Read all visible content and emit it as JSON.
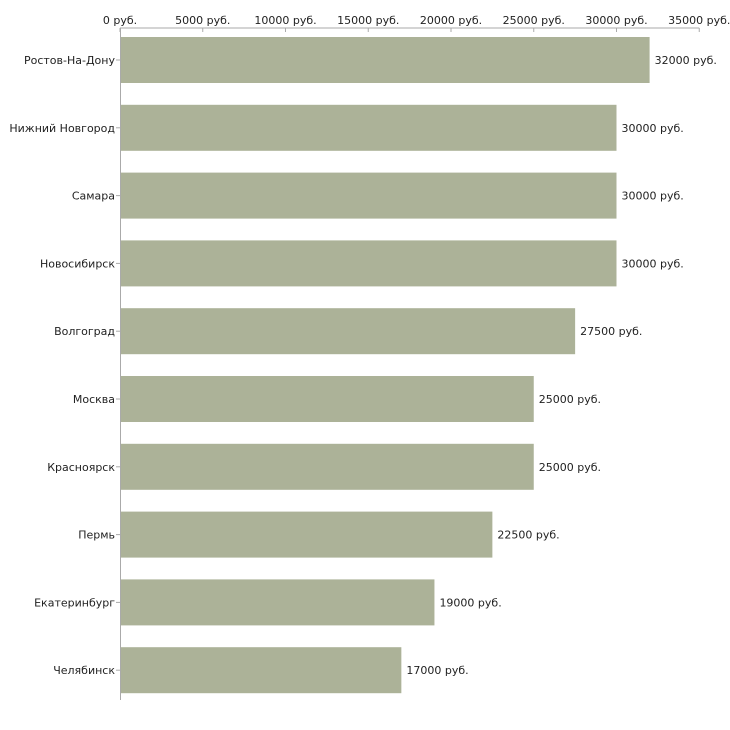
{
  "chart_data": {
    "type": "bar",
    "orientation": "horizontal",
    "title": "",
    "xlabel": "",
    "ylabel": "",
    "xlim": [
      0,
      35000
    ],
    "x_ticks": [
      {
        "value": 0,
        "label": "0 руб."
      },
      {
        "value": 5000,
        "label": "5000 руб."
      },
      {
        "value": 10000,
        "label": "10000 руб."
      },
      {
        "value": 15000,
        "label": "15000 руб."
      },
      {
        "value": 20000,
        "label": "20000 руб."
      },
      {
        "value": 25000,
        "label": "25000 руб."
      },
      {
        "value": 30000,
        "label": "30000 руб."
      },
      {
        "value": 35000,
        "label": "35000 руб."
      }
    ],
    "grid": false,
    "categories": [
      "Ростов-На-Дону",
      "Нижний Новгород",
      "Самара",
      "Новосибирск",
      "Волгоград",
      "Москва",
      "Красноярск",
      "Пермь",
      "Екатеринбург",
      "Челябинск"
    ],
    "values": [
      32000,
      30000,
      30000,
      30000,
      27500,
      25000,
      25000,
      22500,
      19000,
      17000
    ],
    "value_labels": [
      "32000 руб.",
      "30000 руб.",
      "30000 руб.",
      "30000 руб.",
      "27500 руб.",
      "25000 руб.",
      "25000 руб.",
      "22500 руб.",
      "19000 руб.",
      "17000 руб."
    ],
    "bar_color": "#acb298",
    "axis_color": "#aaaaaa"
  }
}
